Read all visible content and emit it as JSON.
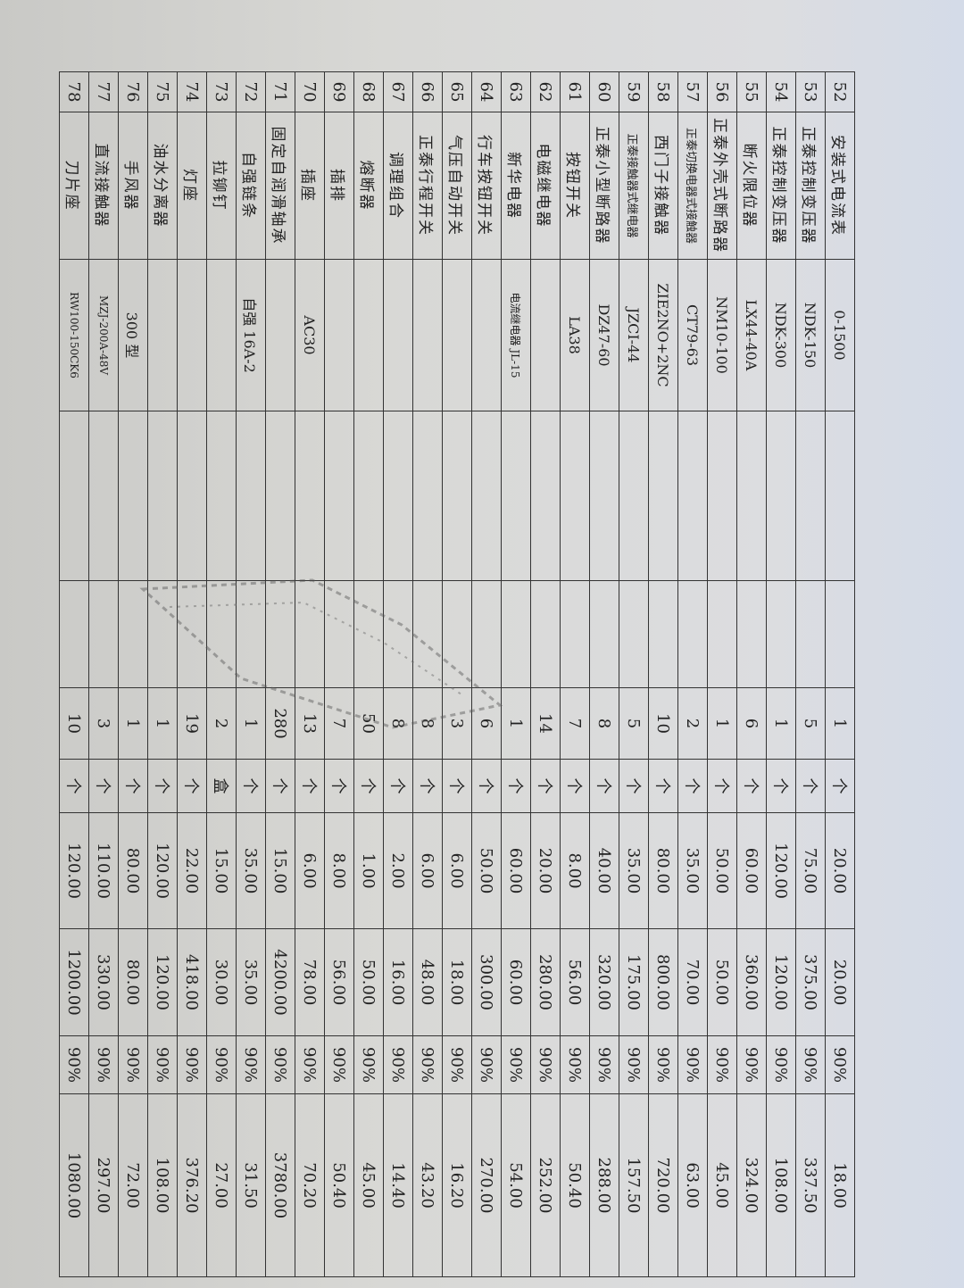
{
  "rows": [
    {
      "no": "52",
      "name": "安装式电流表",
      "model": "0-1500",
      "qty": "1",
      "unit": "个",
      "price": "20.00",
      "total": "20.00",
      "rate": "90%",
      "final": "18.00"
    },
    {
      "no": "53",
      "name": "正泰控制变压器",
      "model": "NDK-150",
      "qty": "5",
      "unit": "个",
      "price": "75.00",
      "total": "375.00",
      "rate": "90%",
      "final": "337.50"
    },
    {
      "no": "54",
      "name": "正泰控制变压器",
      "model": "NDK-300",
      "qty": "1",
      "unit": "个",
      "price": "120.00",
      "total": "120.00",
      "rate": "90%",
      "final": "108.00"
    },
    {
      "no": "55",
      "name": "断火限位器",
      "model": "LX44-40A",
      "qty": "6",
      "unit": "个",
      "price": "60.00",
      "total": "360.00",
      "rate": "90%",
      "final": "324.00"
    },
    {
      "no": "56",
      "name": "正泰外壳式断路器",
      "model": "NM10-100",
      "qty": "1",
      "unit": "个",
      "price": "50.00",
      "total": "50.00",
      "rate": "90%",
      "final": "45.00"
    },
    {
      "no": "57",
      "name": "正泰切换电器式接触器",
      "model": "CT79-63",
      "qty": "2",
      "unit": "个",
      "price": "35.00",
      "total": "70.00",
      "rate": "90%",
      "final": "63.00"
    },
    {
      "no": "58",
      "name": "西门子接触器",
      "model": "ZIE2NO+2NC",
      "qty": "10",
      "unit": "个",
      "price": "80.00",
      "total": "800.00",
      "rate": "90%",
      "final": "720.00"
    },
    {
      "no": "59",
      "name": "正泰接触器式继电器",
      "model": "JZCI-44",
      "qty": "5",
      "unit": "个",
      "price": "35.00",
      "total": "175.00",
      "rate": "90%",
      "final": "157.50"
    },
    {
      "no": "60",
      "name": "正泰小型断路器",
      "model": "DZ47-60",
      "qty": "8",
      "unit": "个",
      "price": "40.00",
      "total": "320.00",
      "rate": "90%",
      "final": "288.00"
    },
    {
      "no": "61",
      "name": "按钮开关",
      "model": "LA38",
      "qty": "7",
      "unit": "个",
      "price": "8.00",
      "total": "56.00",
      "rate": "90%",
      "final": "50.40"
    },
    {
      "no": "62",
      "name": "电磁继电器",
      "model": "",
      "qty": "14",
      "unit": "个",
      "price": "20.00",
      "total": "280.00",
      "rate": "90%",
      "final": "252.00"
    },
    {
      "no": "63",
      "name": "新华电器",
      "model": "电流继电器 JL-15",
      "qty": "1",
      "unit": "个",
      "price": "60.00",
      "total": "60.00",
      "rate": "90%",
      "final": "54.00"
    },
    {
      "no": "64",
      "name": "行车按钮开关",
      "model": "",
      "qty": "6",
      "unit": "个",
      "price": "50.00",
      "total": "300.00",
      "rate": "90%",
      "final": "270.00"
    },
    {
      "no": "65",
      "name": "气压自动开关",
      "model": "",
      "qty": "3",
      "unit": "个",
      "price": "6.00",
      "total": "18.00",
      "rate": "90%",
      "final": "16.20"
    },
    {
      "no": "66",
      "name": "正泰行程开关",
      "model": "",
      "qty": "8",
      "unit": "个",
      "price": "6.00",
      "total": "48.00",
      "rate": "90%",
      "final": "43.20"
    },
    {
      "no": "67",
      "name": "调理组合",
      "model": "",
      "qty": "8",
      "unit": "个",
      "price": "2.00",
      "total": "16.00",
      "rate": "90%",
      "final": "14.40"
    },
    {
      "no": "68",
      "name": "熔断器",
      "model": "",
      "qty": "50",
      "unit": "个",
      "price": "1.00",
      "total": "50.00",
      "rate": "90%",
      "final": "45.00"
    },
    {
      "no": "69",
      "name": "插排",
      "model": "",
      "qty": "7",
      "unit": "个",
      "price": "8.00",
      "total": "56.00",
      "rate": "90%",
      "final": "50.40"
    },
    {
      "no": "70",
      "name": "插座",
      "model": "AC30",
      "qty": "13",
      "unit": "个",
      "price": "6.00",
      "total": "78.00",
      "rate": "90%",
      "final": "70.20"
    },
    {
      "no": "71",
      "name": "固定自润滑轴承",
      "model": "",
      "qty": "280",
      "unit": "个",
      "price": "15.00",
      "total": "4200.00",
      "rate": "90%",
      "final": "3780.00"
    },
    {
      "no": "72",
      "name": "自强链条",
      "model": "自强 16A-2",
      "qty": "1",
      "unit": "个",
      "price": "35.00",
      "total": "35.00",
      "rate": "90%",
      "final": "31.50"
    },
    {
      "no": "73",
      "name": "拉铆钉",
      "model": "",
      "qty": "2",
      "unit": "盒",
      "price": "15.00",
      "total": "30.00",
      "rate": "90%",
      "final": "27.00"
    },
    {
      "no": "74",
      "name": "灯座",
      "model": "",
      "qty": "19",
      "unit": "个",
      "price": "22.00",
      "total": "418.00",
      "rate": "90%",
      "final": "376.20"
    },
    {
      "no": "75",
      "name": "油水分离器",
      "model": "",
      "qty": "1",
      "unit": "个",
      "price": "120.00",
      "total": "120.00",
      "rate": "90%",
      "final": "108.00"
    },
    {
      "no": "76",
      "name": "手风器",
      "model": "300 型",
      "qty": "1",
      "unit": "个",
      "price": "80.00",
      "total": "80.00",
      "rate": "90%",
      "final": "72.00"
    },
    {
      "no": "77",
      "name": "直流接触器",
      "model": "MZJ-200A-48V",
      "qty": "3",
      "unit": "个",
      "price": "110.00",
      "total": "330.00",
      "rate": "90%",
      "final": "297.00"
    },
    {
      "no": "78",
      "name": "刀片座",
      "model": "RW100-150CK6",
      "qty": "10",
      "unit": "个",
      "price": "120.00",
      "total": "1200.00",
      "rate": "90%",
      "final": "1080.00"
    }
  ]
}
